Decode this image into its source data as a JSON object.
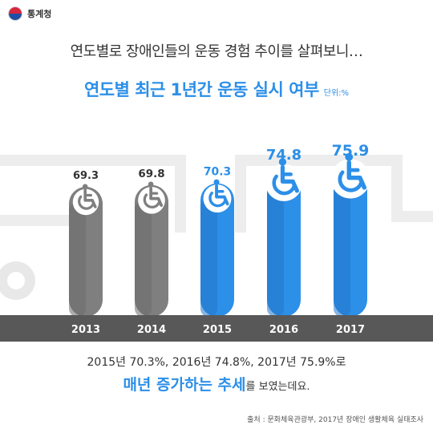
{
  "header": {
    "org_name": "통계청"
  },
  "intro_text": "연도별로 장애인들의 운동 경험 추이를 살펴보니…",
  "chart_title": "연도별 최근 1년간 운동 실시 여부",
  "unit_label": "단위:%",
  "summary": {
    "line1": "2015년 70.3%, 2016년 74.8%, 2017년 75.9%로",
    "highlight": "매년 증가하는 추세",
    "suffix": "를 보였는데요."
  },
  "source": "출처 : 문화체육관광부, 2017년 장애인 생활체육 실태조사",
  "colors": {
    "accent": "#2c8fe8",
    "gray_bar": "#7f7f7f",
    "dark_band": "#585858"
  },
  "icons": [
    "wheelchair-icon"
  ],
  "chart_data": {
    "type": "bar",
    "title": "연도별 최근 1년간 운동 실시 여부",
    "unit": "단위:%",
    "categories": [
      "2013",
      "2014",
      "2015",
      "2016",
      "2017"
    ],
    "values": [
      69.3,
      69.8,
      70.3,
      74.8,
      75.9
    ],
    "value_labels": [
      "69.3",
      "69.8",
      "70.3",
      "74.8",
      "75.9"
    ],
    "bar_colors": [
      "#7f7f7f",
      "#7f7f7f",
      "#2c8fe8",
      "#2c8fe8",
      "#2c8fe8"
    ],
    "xlabel": "",
    "ylabel": ""
  }
}
